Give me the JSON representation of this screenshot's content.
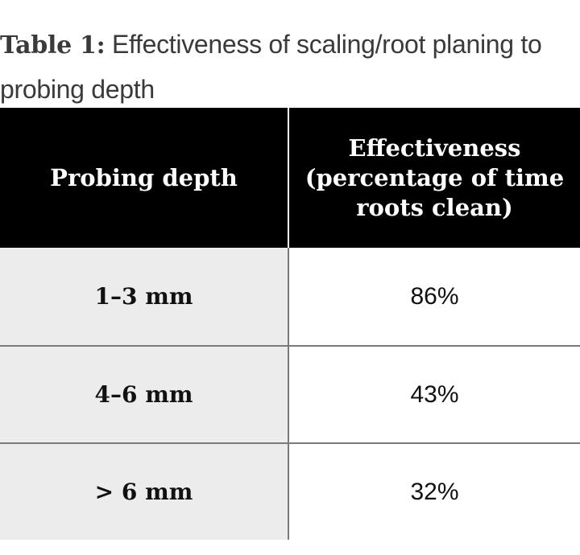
{
  "caption": {
    "label": "Table 1:",
    "text": " Effectiveness of scaling/root planing to probing depth"
  },
  "table": {
    "headers": [
      {
        "lines": [
          "Probing depth"
        ]
      },
      {
        "lines": [
          "Effectiveness",
          "(percentage of time",
          "roots clean)"
        ]
      }
    ],
    "rows": [
      {
        "depth": "1–3 mm",
        "effectiveness": "86%"
      },
      {
        "depth": "4–6 mm",
        "effectiveness": "43%"
      },
      {
        "depth": "> 6 mm",
        "effectiveness": "32%"
      }
    ]
  }
}
